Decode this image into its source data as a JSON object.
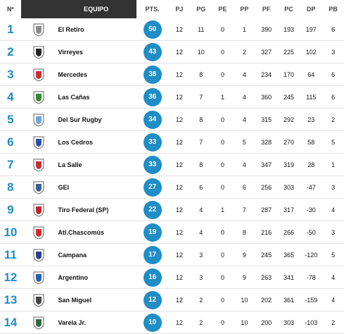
{
  "headers": {
    "pos": "Nº",
    "team": "EQUIPO",
    "pts": "PTS.",
    "pj": "PJ",
    "pg": "PG",
    "pe": "PE",
    "pp": "PP",
    "pf": "PF",
    "pc": "PC",
    "dp": "DP",
    "pb": "PB"
  },
  "rows": [
    {
      "pos": "1",
      "team": "El Retiro",
      "pts": "50",
      "pj": "12",
      "pg": "11",
      "pe": "0",
      "pp": "1",
      "pf": "390",
      "pc": "193",
      "dp": "197",
      "pb": "6",
      "logo": "el-retiro-crest",
      "color": "#8a8a8a"
    },
    {
      "pos": "2",
      "team": "Virreyes",
      "pts": "43",
      "pj": "12",
      "pg": "10",
      "pe": "0",
      "pp": "2",
      "pf": "327",
      "pc": "225",
      "dp": "102",
      "pb": "3",
      "logo": "virreyes-crest",
      "color": "#222222"
    },
    {
      "pos": "3",
      "team": "Mercedes",
      "pts": "38",
      "pj": "12",
      "pg": "8",
      "pe": "0",
      "pp": "4",
      "pf": "234",
      "pc": "170",
      "dp": "64",
      "pb": "6",
      "logo": "mercedes-crest",
      "color": "#d02a2a"
    },
    {
      "pos": "4",
      "team": "Las Cañas",
      "pts": "36",
      "pj": "12",
      "pg": "7",
      "pe": "1",
      "pp": "4",
      "pf": "360",
      "pc": "245",
      "dp": "115",
      "pb": "6",
      "logo": "las-canas-crest",
      "color": "#2e8b2e"
    },
    {
      "pos": "5",
      "team": "Del Sur Rugby",
      "pts": "34",
      "pj": "12",
      "pg": "8",
      "pe": "0",
      "pp": "4",
      "pf": "315",
      "pc": "292",
      "dp": "23",
      "pb": "2",
      "logo": "del-sur-crest",
      "color": "#6aa6d8"
    },
    {
      "pos": "6",
      "team": "Los Cedros",
      "pts": "33",
      "pj": "12",
      "pg": "7",
      "pe": "0",
      "pp": "5",
      "pf": "328",
      "pc": "270",
      "dp": "58",
      "pb": "5",
      "logo": "los-cedros-crest",
      "color": "#2b4fa8"
    },
    {
      "pos": "7",
      "team": "La Salle",
      "pts": "33",
      "pj": "12",
      "pg": "8",
      "pe": "0",
      "pp": "4",
      "pf": "347",
      "pc": "319",
      "dp": "28",
      "pb": "1",
      "logo": "la-salle-crest",
      "color": "#c83030"
    },
    {
      "pos": "8",
      "team": "GEI",
      "pts": "27",
      "pj": "12",
      "pg": "6",
      "pe": "0",
      "pp": "6",
      "pf": "256",
      "pc": "303",
      "dp": "-47",
      "pb": "3",
      "logo": "gei-crest",
      "color": "#3a5f9a"
    },
    {
      "pos": "9",
      "team": "Tiro Federal (SP)",
      "pts": "22",
      "pj": "12",
      "pg": "4",
      "pe": "1",
      "pp": "7",
      "pf": "287",
      "pc": "317",
      "dp": "-30",
      "pb": "4",
      "logo": "tiro-federal-crest",
      "color": "#c0242a"
    },
    {
      "pos": "10",
      "team": "Atl.Chascomús",
      "pts": "19",
      "pj": "12",
      "pg": "4",
      "pe": "0",
      "pp": "8",
      "pf": "216",
      "pc": "266",
      "dp": "-50",
      "pb": "3",
      "logo": "chascomus-crest",
      "color": "#d02a2a"
    },
    {
      "pos": "11",
      "team": "Campana",
      "pts": "17",
      "pj": "12",
      "pg": "3",
      "pe": "0",
      "pp": "9",
      "pf": "245",
      "pc": "365",
      "dp": "-120",
      "pb": "5",
      "logo": "campana-crest",
      "color": "#2b3d8f"
    },
    {
      "pos": "12",
      "team": "Argentino",
      "pts": "16",
      "pj": "12",
      "pg": "3",
      "pe": "0",
      "pp": "9",
      "pf": "263",
      "pc": "341",
      "dp": "-78",
      "pb": "4",
      "logo": "argentino-crest",
      "color": "#1f5fb5"
    },
    {
      "pos": "13",
      "team": "San Miguel",
      "pts": "12",
      "pj": "12",
      "pg": "2",
      "pe": "0",
      "pp": "10",
      "pf": "202",
      "pc": "361",
      "dp": "-159",
      "pb": "4",
      "logo": "san-miguel-crest",
      "color": "#444444"
    },
    {
      "pos": "14",
      "team": "Varela Jr.",
      "pts": "10",
      "pj": "12",
      "pg": "2",
      "pe": "0",
      "pp": "10",
      "pf": "200",
      "pc": "303",
      "dp": "-103",
      "pb": "2",
      "logo": "varela-jr-crest",
      "color": "#2d6b3a"
    }
  ],
  "accent": "#1f8dc6",
  "header_dark": "#333333"
}
